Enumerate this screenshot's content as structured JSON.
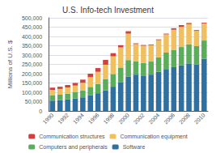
{
  "chart_data": {
    "type": "bar",
    "title": "U.S. Info-tech Investment",
    "ylabel": "Millions of U.S. $",
    "stacked": true,
    "grid": true,
    "legend": "bottom",
    "categories": [
      "1990",
      null,
      "1992",
      null,
      "1994",
      null,
      "1996",
      null,
      "1998",
      null,
      "2000",
      null,
      "2002",
      null,
      "2004",
      null,
      "2006",
      null,
      "2008",
      null,
      "2010"
    ],
    "series": [
      {
        "name": "Software",
        "color": "#3070A0",
        "values": [
          55000,
          58000,
          62000,
          67000,
          73000,
          85000,
          95000,
          110000,
          130000,
          155000,
          185000,
          195000,
          190000,
          195000,
          210000,
          225000,
          235000,
          245000,
          255000,
          250000,
          280000
        ]
      },
      {
        "name": "Computers and peripherals",
        "color": "#5BAD5B",
        "values": [
          28000,
          29000,
          31000,
          33000,
          36000,
          44000,
          50000,
          60000,
          68000,
          78000,
          88000,
          72000,
          68000,
          70000,
          78000,
          88000,
          93000,
          98000,
          103000,
          98000,
          98000
        ]
      },
      {
        "name": "Communication equipment",
        "color": "#F0C060",
        "values": [
          30000,
          31000,
          33000,
          36000,
          42000,
          52000,
          65000,
          78000,
          95000,
          108000,
          142000,
          92000,
          92000,
          88000,
          92000,
          98000,
          108000,
          108000,
          108000,
          82000,
          92000
        ]
      },
      {
        "name": "Communication structures",
        "color": "#D04040",
        "values": [
          12000,
          12000,
          13000,
          14000,
          17000,
          19000,
          20000,
          26000,
          17000,
          12000,
          13000,
          4000,
          4000,
          4000,
          4000,
          4000,
          8000,
          10000,
          6000,
          4000,
          4000
        ]
      }
    ],
    "ylim": [
      0,
      500000
    ],
    "yticks": [
      0,
      {
        "value": 50000,
        "label": "50,000"
      },
      {
        "value": 100000,
        "label": "100,000"
      },
      {
        "value": 150000,
        "label": "150,000"
      },
      {
        "value": 200000,
        "label": "200,000"
      },
      {
        "value": 250000,
        "label": "250,000"
      },
      {
        "value": 300000,
        "label": "300,000"
      },
      {
        "value": 350000,
        "label": "350,000"
      },
      {
        "value": 400000,
        "label": "400,000"
      },
      {
        "value": 450000,
        "label": "450,000"
      },
      {
        "value": 500000,
        "label": "500,000"
      }
    ]
  }
}
